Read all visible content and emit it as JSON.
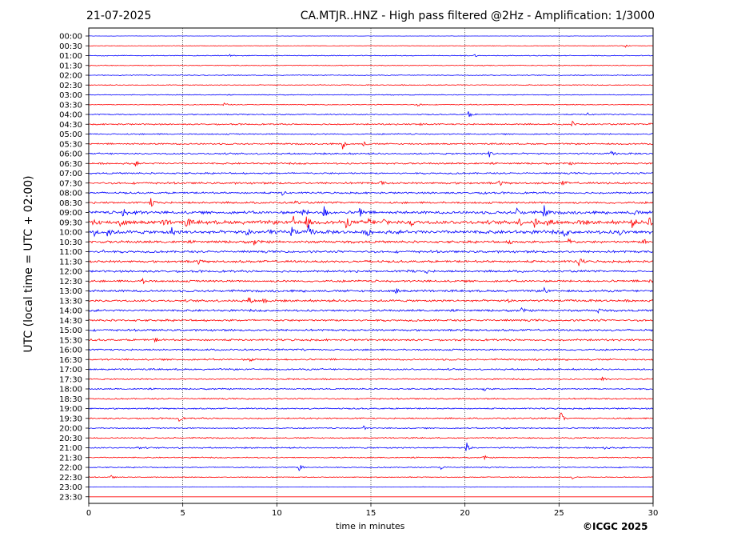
{
  "header": {
    "date": "21-07-2025",
    "station_title": "CA.MTJR..HNZ - High pass filtered @2Hz - Amplification: 1/3000"
  },
  "footer": {
    "copyright": "©ICGC 2025"
  },
  "chart_data": {
    "type": "line",
    "subtype": "helicorder",
    "title": "CA.MTJR..HNZ - High pass filtered @2Hz - Amplification: 1/3000",
    "date": "21-07-2025",
    "xlabel": "time in minutes",
    "ylabel": "UTC (local time = UTC + 02:00)",
    "xlim": [
      0,
      30
    ],
    "x_ticks": [
      0,
      5,
      10,
      15,
      20,
      25,
      30
    ],
    "grid": "vertical dotted at x ticks",
    "trace_colors": [
      "#0000ff",
      "#ff0000"
    ],
    "rows": [
      "00:00",
      "00:30",
      "01:00",
      "01:30",
      "02:00",
      "02:30",
      "03:00",
      "03:30",
      "04:00",
      "04:30",
      "05:00",
      "05:30",
      "06:00",
      "06:30",
      "07:00",
      "07:30",
      "08:00",
      "08:30",
      "09:00",
      "09:30",
      "10:00",
      "10:30",
      "11:00",
      "11:30",
      "12:00",
      "12:30",
      "13:00",
      "13:30",
      "14:00",
      "14:30",
      "15:00",
      "15:30",
      "16:00",
      "16:30",
      "17:00",
      "17:30",
      "18:00",
      "18:30",
      "19:00",
      "19:30",
      "20:00",
      "20:30",
      "21:00",
      "21:30",
      "22:00",
      "22:30",
      "23:00",
      "23:30"
    ],
    "noise_level": [
      0.2,
      0.4,
      0.6,
      0.6,
      0.6,
      0.6,
      0.6,
      0.6,
      0.8,
      1.0,
      0.9,
      1.1,
      1.2,
      1.2,
      1.2,
      1.4,
      1.3,
      1.4,
      2.0,
      2.6,
      2.4,
      1.8,
      1.6,
      1.6,
      1.5,
      1.5,
      1.6,
      1.6,
      1.5,
      1.5,
      1.4,
      1.4,
      1.2,
      1.2,
      1.2,
      1.0,
      1.0,
      1.0,
      1.0,
      1.0,
      0.9,
      0.9,
      1.0,
      0.8,
      0.8,
      0.6,
      0.3,
      0.0
    ],
    "events": [
      {
        "row": "00:30",
        "t": 28.5,
        "a": 2
      },
      {
        "row": "01:00",
        "t": 7.5,
        "a": 2
      },
      {
        "row": "01:00",
        "t": 20.5,
        "a": 2
      },
      {
        "row": "03:30",
        "t": 7.2,
        "a": 3
      },
      {
        "row": "03:30",
        "t": 17.5,
        "a": 2
      },
      {
        "row": "04:00",
        "t": 20.2,
        "a": 4
      },
      {
        "row": "04:00",
        "t": 26.5,
        "a": 2
      },
      {
        "row": "04:30",
        "t": 25.7,
        "a": 4
      },
      {
        "row": "04:30",
        "t": 17.6,
        "a": 3
      },
      {
        "row": "04:30",
        "t": 29.8,
        "a": 3
      },
      {
        "row": "05:30",
        "t": 13.5,
        "a": 6
      },
      {
        "row": "05:30",
        "t": 14.6,
        "a": 3
      },
      {
        "row": "06:00",
        "t": 21.3,
        "a": 4
      },
      {
        "row": "06:00",
        "t": 27.8,
        "a": 3
      },
      {
        "row": "06:30",
        "t": 2.5,
        "a": 3
      },
      {
        "row": "06:30",
        "t": 25.5,
        "a": 2
      },
      {
        "row": "07:30",
        "t": 21.8,
        "a": 4
      },
      {
        "row": "07:30",
        "t": 25.2,
        "a": 3
      },
      {
        "row": "07:30",
        "t": 15.5,
        "a": 3
      },
      {
        "row": "08:00",
        "t": 10.3,
        "a": 3
      },
      {
        "row": "08:00",
        "t": 21.0,
        "a": 3
      },
      {
        "row": "08:30",
        "t": 3.3,
        "a": 7
      },
      {
        "row": "08:30",
        "t": 11.0,
        "a": 3
      },
      {
        "row": "09:00",
        "t": 1.8,
        "a": 6
      },
      {
        "row": "09:00",
        "t": 2.5,
        "a": 5
      },
      {
        "row": "09:00",
        "t": 11.4,
        "a": 6
      },
      {
        "row": "09:00",
        "t": 12.5,
        "a": 9
      },
      {
        "row": "09:00",
        "t": 14.4,
        "a": 8
      },
      {
        "row": "09:00",
        "t": 22.8,
        "a": 10
      },
      {
        "row": "09:00",
        "t": 24.2,
        "a": 9
      },
      {
        "row": "09:00",
        "t": 29.0,
        "a": 4
      },
      {
        "row": "09:30",
        "t": 0.2,
        "a": 8
      },
      {
        "row": "09:30",
        "t": 1.7,
        "a": 8
      },
      {
        "row": "09:30",
        "t": 4.0,
        "a": 7
      },
      {
        "row": "09:30",
        "t": 5.2,
        "a": 7
      },
      {
        "row": "09:30",
        "t": 10.9,
        "a": 8
      },
      {
        "row": "09:30",
        "t": 11.6,
        "a": 9
      },
      {
        "row": "09:30",
        "t": 13.7,
        "a": 8
      },
      {
        "row": "09:30",
        "t": 14.8,
        "a": 9
      },
      {
        "row": "09:30",
        "t": 15.7,
        "a": 7
      },
      {
        "row": "09:30",
        "t": 17.1,
        "a": 7
      },
      {
        "row": "09:30",
        "t": 22.8,
        "a": 7
      },
      {
        "row": "09:30",
        "t": 23.7,
        "a": 6
      },
      {
        "row": "09:30",
        "t": 24.4,
        "a": 7
      },
      {
        "row": "09:30",
        "t": 26.1,
        "a": 7
      },
      {
        "row": "09:30",
        "t": 28.9,
        "a": 6
      },
      {
        "row": "09:30",
        "t": 29.8,
        "a": 8
      },
      {
        "row": "10:00",
        "t": 0.3,
        "a": 6
      },
      {
        "row": "10:00",
        "t": 1.0,
        "a": 8
      },
      {
        "row": "10:00",
        "t": 4.4,
        "a": 6
      },
      {
        "row": "10:00",
        "t": 8.4,
        "a": 8
      },
      {
        "row": "10:00",
        "t": 9.6,
        "a": 7
      },
      {
        "row": "10:00",
        "t": 10.8,
        "a": 9
      },
      {
        "row": "10:00",
        "t": 11.7,
        "a": 8
      },
      {
        "row": "10:00",
        "t": 14.8,
        "a": 6
      },
      {
        "row": "10:00",
        "t": 25.3,
        "a": 5
      },
      {
        "row": "10:00",
        "t": 28.2,
        "a": 5
      },
      {
        "row": "10:30",
        "t": 8.8,
        "a": 4
      },
      {
        "row": "10:30",
        "t": 22.4,
        "a": 5
      },
      {
        "row": "10:30",
        "t": 25.5,
        "a": 5
      },
      {
        "row": "10:30",
        "t": 29.5,
        "a": 4
      },
      {
        "row": "11:00",
        "t": 0.8,
        "a": 3
      },
      {
        "row": "11:30",
        "t": 26.0,
        "a": 10
      },
      {
        "row": "11:30",
        "t": 5.8,
        "a": 3
      },
      {
        "row": "11:30",
        "t": 15.0,
        "a": 3
      },
      {
        "row": "12:00",
        "t": 17.0,
        "a": 4
      },
      {
        "row": "12:00",
        "t": 17.9,
        "a": 3
      },
      {
        "row": "12:30",
        "t": 2.9,
        "a": 4
      },
      {
        "row": "12:30",
        "t": 29.8,
        "a": 3
      },
      {
        "row": "13:00",
        "t": 16.3,
        "a": 4
      },
      {
        "row": "13:00",
        "t": 24.2,
        "a": 4
      },
      {
        "row": "13:30",
        "t": 8.5,
        "a": 5
      },
      {
        "row": "13:30",
        "t": 9.3,
        "a": 4
      },
      {
        "row": "13:30",
        "t": 22.3,
        "a": 3
      },
      {
        "row": "14:00",
        "t": 23.0,
        "a": 3
      },
      {
        "row": "14:00",
        "t": 27.1,
        "a": 3
      },
      {
        "row": "15:30",
        "t": 3.5,
        "a": 3
      },
      {
        "row": "16:00",
        "t": 11.4,
        "a": 3
      },
      {
        "row": "16:30",
        "t": 8.6,
        "a": 3
      },
      {
        "row": "17:30",
        "t": 27.3,
        "a": 4
      },
      {
        "row": "18:00",
        "t": 21.0,
        "a": 3
      },
      {
        "row": "19:30",
        "t": 25.1,
        "a": 8
      },
      {
        "row": "19:30",
        "t": 4.8,
        "a": 3
      },
      {
        "row": "20:00",
        "t": 14.6,
        "a": 3
      },
      {
        "row": "20:00",
        "t": 21.8,
        "a": 2
      },
      {
        "row": "21:00",
        "t": 20.1,
        "a": 8
      },
      {
        "row": "21:00",
        "t": 27.4,
        "a": 3
      },
      {
        "row": "21:00",
        "t": 2.6,
        "a": 3
      },
      {
        "row": "21:30",
        "t": 21.0,
        "a": 3
      },
      {
        "row": "22:00",
        "t": 11.2,
        "a": 5
      },
      {
        "row": "22:00",
        "t": 18.7,
        "a": 3
      },
      {
        "row": "22:30",
        "t": 1.2,
        "a": 2
      },
      {
        "row": "22:30",
        "t": 25.7,
        "a": 2
      }
    ]
  }
}
